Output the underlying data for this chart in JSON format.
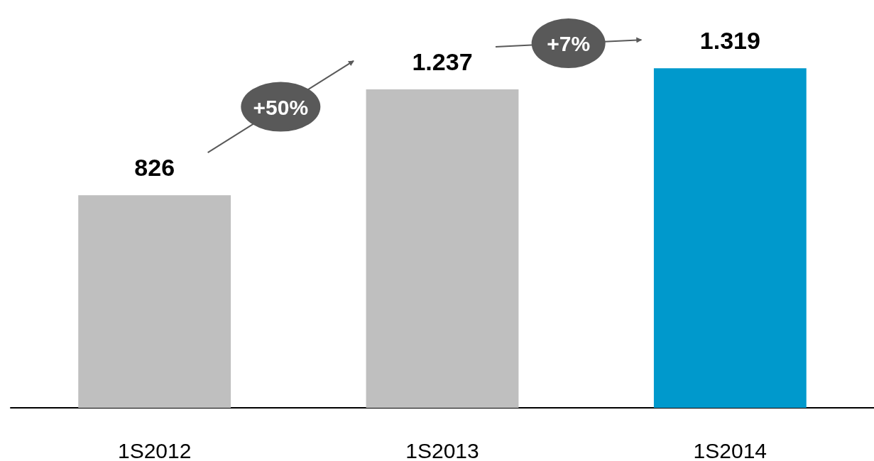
{
  "chart_data": {
    "type": "bar",
    "categories": [
      "1S2012",
      "1S2013",
      "1S2014"
    ],
    "values": [
      826,
      1237,
      1319
    ],
    "colors": [
      "#bfbfbf",
      "#bfbfbf",
      "#0099cc"
    ],
    "value_labels": [
      "826",
      "1.237",
      "1.319"
    ],
    "annotations": [
      "+50%",
      "+7%"
    ]
  }
}
